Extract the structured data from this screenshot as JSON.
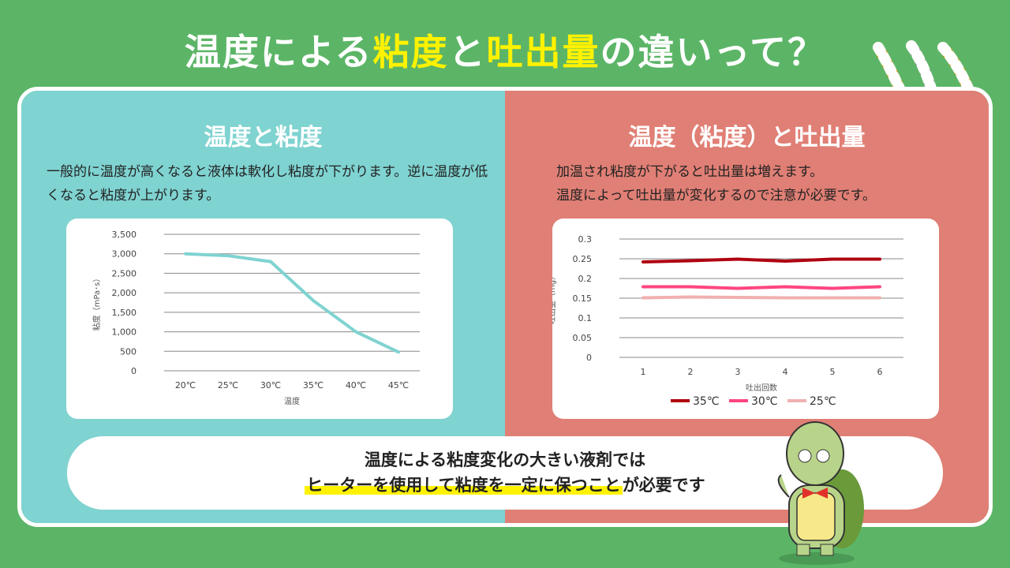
{
  "title": {
    "part1": "温度による",
    "part2": "粘度",
    "part3": "と",
    "part4": "吐出量",
    "part5": "の違いって？"
  },
  "left": {
    "heading": "温度と粘度",
    "text": "一般的に温度が高くなると液体は軟化し粘度が下がります。逆に温度が低くなると粘度が上がります。"
  },
  "right": {
    "heading": "温度（粘度）と吐出量",
    "text1": "加温され粘度が下がると吐出量は増えます。",
    "text2": "温度によって吐出量が変化するので注意が必要です。"
  },
  "bottom": {
    "line1": "温度による粘度変化の大きい液剤では",
    "line2_highlight": "ヒーターを使用して粘度を一定に保つこと",
    "line2_rest": "が必要です"
  },
  "chart_data": [
    {
      "type": "line",
      "categories": [
        "20℃",
        "25℃",
        "30℃",
        "35℃",
        "40℃",
        "45℃"
      ],
      "values": [
        3000,
        2950,
        2800,
        1800,
        1000,
        480
      ],
      "xlabel": "温度",
      "ylabel": "粘度（mPa･s）",
      "ylim": [
        0,
        3500
      ],
      "yticks": [
        "0",
        "500",
        "1,000",
        "1,500",
        "2,000",
        "2,500",
        "3,000",
        "3,500"
      ],
      "color": "#7fd3d1",
      "grid": true
    },
    {
      "type": "line",
      "categories": [
        "1",
        "2",
        "3",
        "4",
        "5",
        "6"
      ],
      "xlabel": "吐出回数",
      "ylabel": "吐出量（mg）",
      "ylim": [
        0,
        0.3
      ],
      "yticks": [
        "0",
        "0.05",
        "0.1",
        "0.15",
        "0.2",
        "0.25",
        "0.3"
      ],
      "legend": "bottom",
      "grid": true,
      "series": [
        {
          "name": "35℃",
          "color": "#b00010",
          "values": [
            0.242,
            0.245,
            0.249,
            0.244,
            0.249,
            0.249
          ]
        },
        {
          "name": "30℃",
          "color": "#ff4680",
          "values": [
            0.179,
            0.179,
            0.175,
            0.179,
            0.175,
            0.179
          ]
        },
        {
          "name": "25℃",
          "color": "#f0b0b0",
          "values": [
            0.151,
            0.153,
            0.152,
            0.151,
            0.151,
            0.151
          ]
        }
      ]
    }
  ]
}
